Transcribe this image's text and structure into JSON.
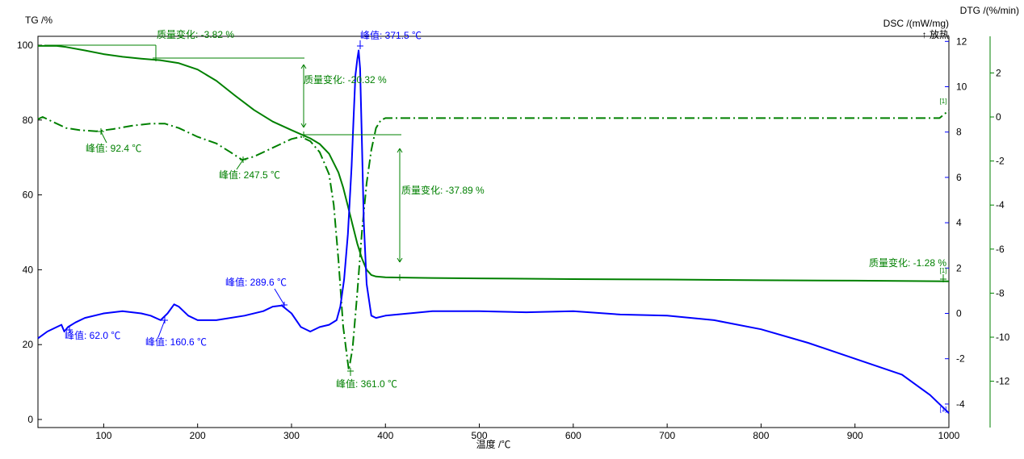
{
  "chart_data": {
    "type": "line",
    "xlabel": "温度 /℃",
    "xlim": [
      30,
      1000
    ],
    "x_ticks": [
      100,
      200,
      300,
      400,
      500,
      600,
      700,
      800,
      900,
      1000
    ],
    "axes": {
      "tg": {
        "label": "TG /%",
        "lim": [
          0,
          100
        ],
        "ticks": [
          0,
          20,
          40,
          60,
          80,
          100
        ],
        "color": "#008000"
      },
      "dsc": {
        "label": "DSC /(mW/mg)",
        "sublabel": "↑ 放热",
        "lim": [
          -4.4,
          11.6
        ],
        "ticks": [
          -4,
          -2,
          0,
          2,
          4,
          6,
          8,
          10,
          12
        ],
        "color": "#0000ff"
      },
      "dtg": {
        "label": "DTG /(%/min)",
        "lim": [
          -13.8,
          3.3
        ],
        "ticks": [
          -12,
          -10,
          -8,
          -6,
          -4,
          -2,
          0,
          2
        ],
        "color": "#008000"
      }
    },
    "series": [
      {
        "key": "tg",
        "axis": "tg",
        "color": "#008000",
        "dash": "solid",
        "x": [
          30,
          50,
          60,
          80,
          100,
          120,
          140,
          160,
          180,
          200,
          220,
          240,
          260,
          280,
          300,
          310,
          320,
          330,
          340,
          350,
          355,
          360,
          365,
          370,
          375,
          380,
          385,
          390,
          400,
          420,
          450,
          500,
          600,
          700,
          800,
          900,
          1000
        ],
        "y": [
          99.8,
          99.8,
          99.5,
          98.6,
          97.6,
          96.9,
          96.4,
          96.0,
          95.2,
          93.5,
          90.5,
          86.5,
          82.7,
          79.6,
          77.3,
          76.2,
          75.1,
          73.6,
          71.0,
          66.0,
          62.0,
          57.0,
          52.0,
          47.0,
          43.0,
          40.0,
          38.6,
          38.2,
          38.0,
          37.9,
          37.8,
          37.7,
          37.5,
          37.4,
          37.2,
          37.1,
          36.9
        ]
      },
      {
        "key": "dtg",
        "axis": "dtg",
        "color": "#008000",
        "dash": "dashdot",
        "x": [
          30,
          35,
          45,
          60,
          75,
          92.4,
          110,
          130,
          150,
          165,
          180,
          200,
          220,
          235,
          247.5,
          260,
          280,
          300,
          310,
          320,
          330,
          340,
          345,
          350,
          355,
          361,
          365,
          370,
          375,
          380,
          385,
          390,
          395,
          400,
          450,
          500,
          600,
          700,
          800,
          900,
          960,
          990,
          1000
        ],
        "y": [
          -0.1,
          0.0,
          -0.2,
          -0.5,
          -0.6,
          -0.65,
          -0.55,
          -0.4,
          -0.3,
          -0.3,
          -0.5,
          -0.9,
          -1.2,
          -1.6,
          -1.95,
          -1.8,
          -1.4,
          -1.0,
          -0.9,
          -1.1,
          -1.6,
          -2.6,
          -4.0,
          -6.5,
          -9.5,
          -11.5,
          -10.5,
          -8.0,
          -5.2,
          -3.0,
          -1.5,
          -0.5,
          -0.15,
          -0.05,
          -0.05,
          -0.05,
          -0.05,
          -0.05,
          -0.05,
          -0.05,
          -0.05,
          -0.05,
          0.3
        ]
      },
      {
        "key": "dsc",
        "axis": "dsc",
        "color": "#0000ff",
        "dash": "solid",
        "x": [
          30,
          40,
          50,
          55,
          58,
          62,
          70,
          80,
          100,
          120,
          140,
          150,
          160.6,
          168,
          175,
          180,
          190,
          200,
          220,
          250,
          270,
          280,
          289.6,
          300,
          310,
          320,
          330,
          340,
          348,
          352,
          356,
          360,
          364,
          366,
          368,
          370,
          371.5,
          373,
          375,
          377,
          380,
          385,
          390,
          400,
          450,
          500,
          550,
          600,
          650,
          700,
          750,
          800,
          850,
          900,
          950,
          980,
          1000
        ],
        "y": [
          -1.1,
          -0.8,
          -0.6,
          -0.5,
          -0.8,
          -0.6,
          -0.4,
          -0.2,
          0.0,
          0.1,
          0.0,
          -0.1,
          -0.3,
          0.0,
          0.4,
          0.3,
          -0.1,
          -0.3,
          -0.3,
          -0.1,
          0.1,
          0.3,
          0.35,
          0.0,
          -0.6,
          -0.8,
          -0.6,
          -0.5,
          -0.3,
          0.3,
          1.5,
          3.5,
          6.5,
          8.5,
          10.5,
          11.2,
          11.6,
          10.8,
          7.5,
          4.0,
          1.3,
          -0.1,
          -0.2,
          -0.1,
          0.1,
          0.1,
          0.05,
          0.1,
          -0.05,
          -0.1,
          -0.3,
          -0.7,
          -1.3,
          -2.0,
          -2.7,
          -3.6,
          -4.4
        ]
      }
    ],
    "annotations": [
      {
        "key": "ml1",
        "text": "质量变化: -3.82 %",
        "color": "#008000"
      },
      {
        "key": "ml2",
        "text": "质量变化: -20.32 %",
        "color": "#008000"
      },
      {
        "key": "ml3",
        "text": "质量变化: -37.89 %",
        "color": "#008000"
      },
      {
        "key": "ml4",
        "text": "质量变化: -1.28 %",
        "color": "#008000"
      },
      {
        "key": "p1",
        "text": "峰值: 92.4 ℃",
        "color": "#008000"
      },
      {
        "key": "p2",
        "text": "峰值: 247.5 ℃",
        "color": "#008000"
      },
      {
        "key": "p3",
        "text": "峰值: 361.0 ℃",
        "color": "#008000"
      },
      {
        "key": "p4",
        "text": "峰值: 371.5 ℃",
        "color": "#0000ff"
      },
      {
        "key": "p5",
        "text": "峰值: 289.6 ℃",
        "color": "#0000ff"
      },
      {
        "key": "p6",
        "text": "峰值: 62.0 ℃",
        "color": "#0000ff"
      },
      {
        "key": "p7",
        "text": "峰值: 160.6 ℃",
        "color": "#0000ff"
      }
    ],
    "segment_marker": "[1]",
    "grid": false
  }
}
